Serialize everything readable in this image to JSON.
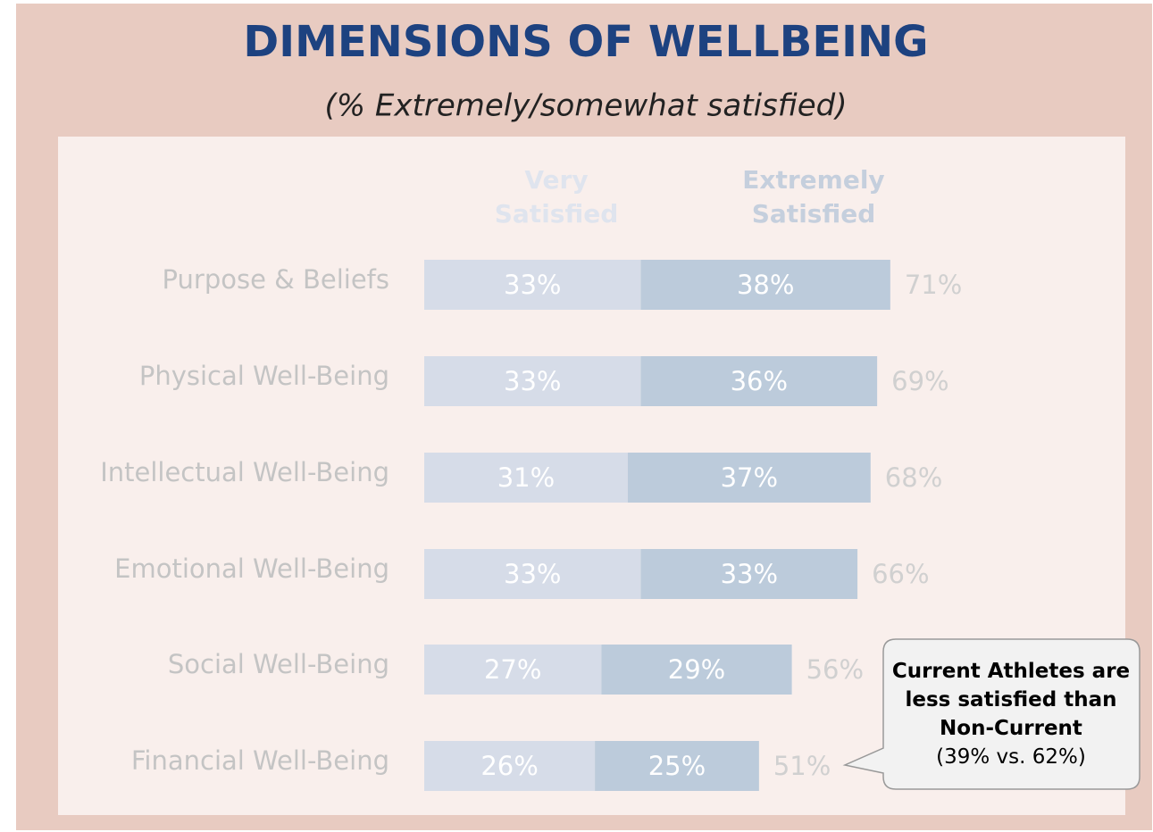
{
  "chart_data": {
    "type": "stacked_bar_horizontal",
    "title": "DIMENSIONS OF WELLBEING",
    "subtitle": "(% Extremely/somewhat satisfied)",
    "categories": [
      "Purpose & Beliefs",
      "Physical Well-Being",
      "Intellectual Well-Being",
      "Emotional Well-Being",
      "Social Well-Being",
      "Financial Well-Being"
    ],
    "series": [
      {
        "name": "Very Satisfied",
        "color": "#d6dce8",
        "legend_color": "#dfe4ee",
        "values": [
          33,
          33,
          31,
          33,
          27,
          26
        ],
        "value_labels": [
          "33%",
          "33%",
          "31%",
          "33%",
          "27%",
          "26%"
        ]
      },
      {
        "name": "Extremely Satisfied",
        "color": "#bccbdb",
        "legend_color": "#c5cfdd",
        "values": [
          38,
          36,
          37,
          33,
          29,
          25
        ],
        "value_labels": [
          "38%",
          "36%",
          "37%",
          "33%",
          "29%",
          "25%"
        ]
      }
    ],
    "totals": {
      "values": [
        71,
        69,
        68,
        66,
        56,
        51
      ],
      "value_labels": [
        "71%",
        "69%",
        "68%",
        "66%",
        "56%",
        "51%"
      ]
    },
    "xlim": [
      0,
      100
    ],
    "annotation": {
      "text": "Current Athletes are less satisfied than Non-Current",
      "detail": "(39% vs. 62%)"
    }
  }
}
